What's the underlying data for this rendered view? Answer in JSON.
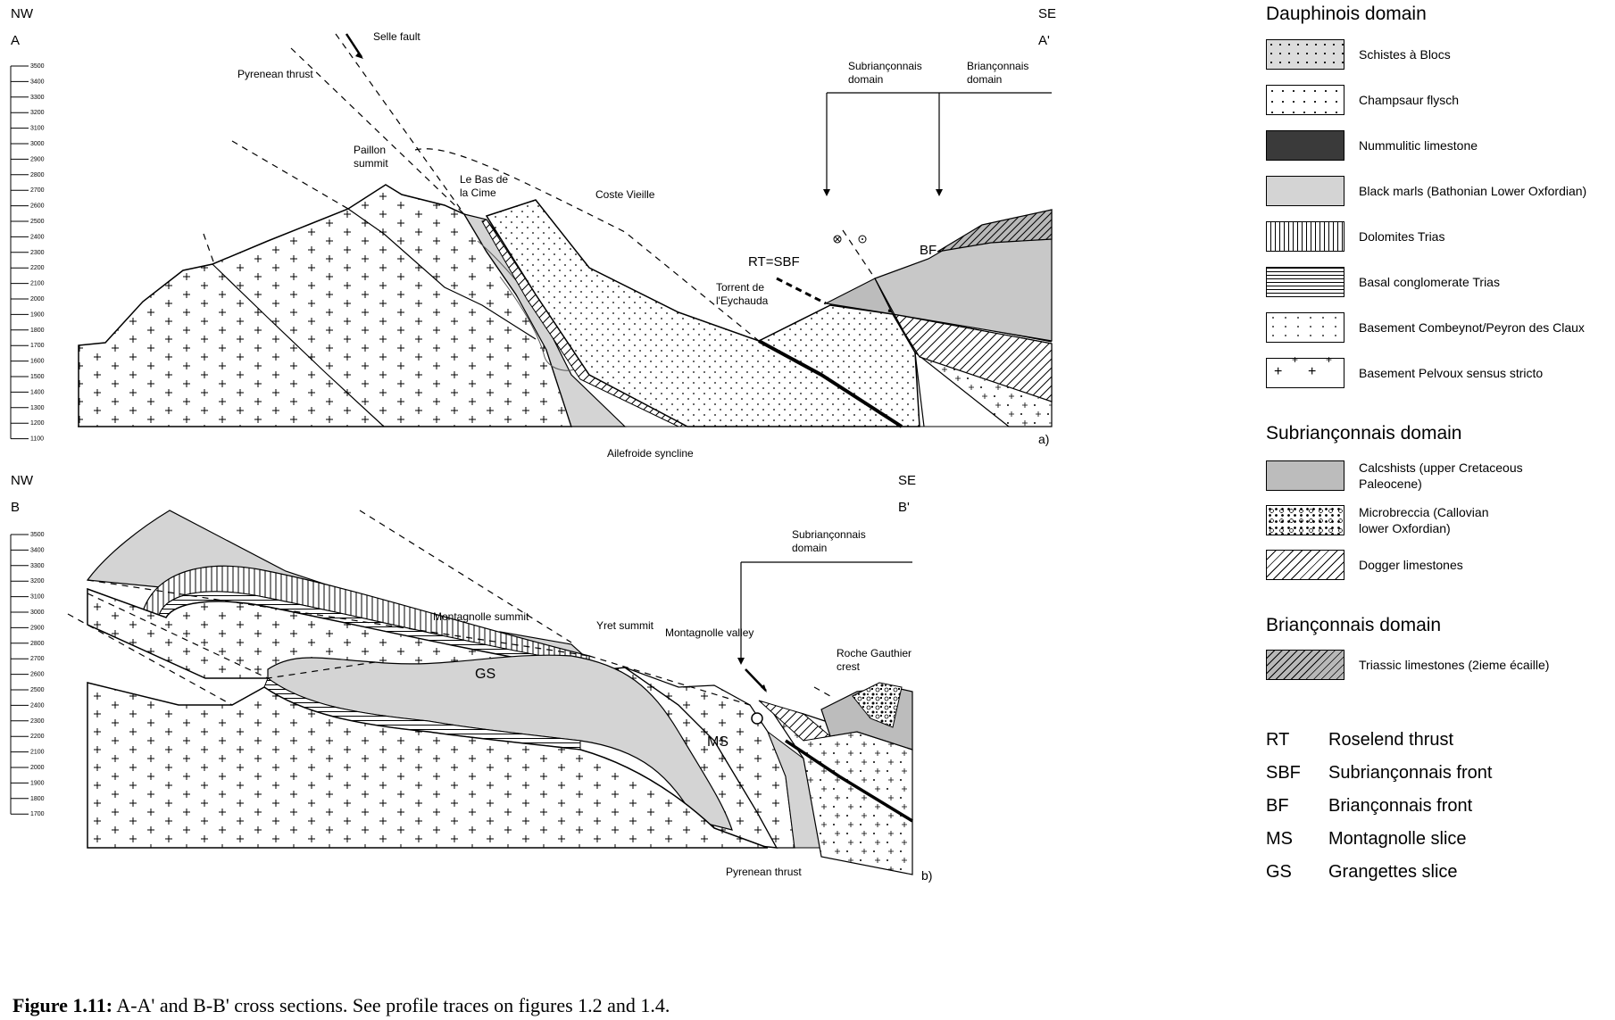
{
  "sectionA": {
    "nw": "NW",
    "se": "SE",
    "start": "A",
    "end": "A'",
    "panel": "a)",
    "scale": [
      "3500",
      "3400",
      "3300",
      "3200",
      "3100",
      "3000",
      "2900",
      "2800",
      "2700",
      "2600",
      "2500",
      "2400",
      "2300",
      "2200",
      "2100",
      "2000",
      "1900",
      "1800",
      "1700",
      "1600",
      "1500",
      "1400",
      "1300",
      "1200",
      "1100"
    ],
    "labels": {
      "selle_fault": "Selle fault",
      "pyrenean_thrust": "Pyrenean thrust",
      "paillon_1": "Paillon",
      "paillon_2": "summit",
      "bas_1": "Le Bas de",
      "bas_2": "la Cime",
      "coste": "Coste Vieille",
      "sub_1": "Subriançonnais",
      "sub_2": "domain",
      "bri_1": "Briançonnais",
      "bri_2": "domain",
      "rt_sbf": "RT=SBF",
      "bf": "BF",
      "torrent_1": "Torrent de",
      "torrent_2": "l'Eychauda",
      "syncline": "Ailefroide syncline"
    }
  },
  "sectionB": {
    "nw": "NW",
    "se": "SE",
    "start": "B",
    "end": "B'",
    "panel": "b)",
    "scale": [
      "3500",
      "3400",
      "3300",
      "3200",
      "3100",
      "3000",
      "2900",
      "2800",
      "2700",
      "2600",
      "2500",
      "2400",
      "2300",
      "2200",
      "2100",
      "2000",
      "1900",
      "1800",
      "1700"
    ],
    "labels": {
      "sub_1": "Subriançonnais",
      "sub_2": "domain",
      "montagnolle_summit": "Montagnolle summit",
      "yret": "Yret summit",
      "montagnolle_valley": "Montagnolle valley",
      "roche_1": "Roche Gauthier",
      "roche_2": "crest",
      "gs": "GS",
      "ms": "MS",
      "pyrenean_thrust": "Pyrenean thrust"
    }
  },
  "legend": {
    "dauphinois_title": "Dauphinois domain",
    "dauphinois": [
      "Schistes à Blocs",
      "Champsaur flysch",
      "Nummulitic limestone",
      "Black marls (Bathonian Lower Oxfordian)",
      "Dolomites Trias",
      "Basal conglomerate Trias",
      "Basement Combeynot/Peyron des Claux",
      "Basement Pelvoux sensus stricto"
    ],
    "subbrianconnais_title": "Subriançonnais domain",
    "subbrianconnais": [
      [
        "Calcshists (upper Cretaceous",
        "Paleocene)"
      ],
      [
        "Microbreccia (Callovian",
        "lower Oxfordian)"
      ],
      [
        "Dogger limestones",
        ""
      ]
    ],
    "brianconnais_title": "Briançonnais domain",
    "brianconnais": [
      "Triassic limestones (2ieme écaille)"
    ],
    "abbreviations": [
      {
        "key": "RT",
        "value": "Roselend thrust"
      },
      {
        "key": "SBF",
        "value": "Subriançonnais front"
      },
      {
        "key": "BF",
        "value": "Briançonnais front"
      },
      {
        "key": "MS",
        "value": "Montagnolle slice"
      },
      {
        "key": "GS",
        "value": "Grangettes slice"
      }
    ]
  },
  "caption": {
    "label": "Figure 1.11:",
    "text": " A-A' and B-B' cross sections. See profile traces on figures 1.2 and 1.4."
  }
}
